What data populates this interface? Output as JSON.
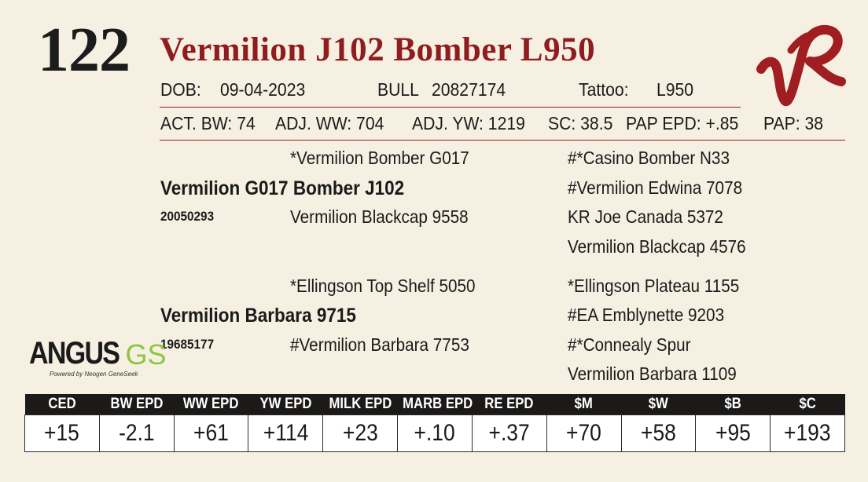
{
  "lot_number": "122",
  "animal_name": "Vermilion J102 Bomber L950",
  "dob_label": "DOB:",
  "dob": "09-04-2023",
  "sex": "BULL",
  "registration": "20827174",
  "tattoo_label": "Tattoo:",
  "tattoo": "L950",
  "performance": [
    "ACT. BW: 74",
    "ADJ. WW: 704",
    "ADJ. YW: 1219",
    "SC: 38.5",
    "PAP EPD: +.85",
    "PAP: 38"
  ],
  "pedigree": {
    "sire": "Vermilion G017 Bomber J102",
    "sire_reg": "20050293",
    "sire_sire": "*Vermilion Bomber G017",
    "sire_dam": "Vermilion Blackcap 9558",
    "sire_sire_sire": "#*Casino Bomber N33",
    "sire_sire_dam": "#Vermilion Edwina 7078",
    "sire_dam_sire": "KR Joe Canada 5372",
    "sire_dam_dam": "Vermilion Blackcap 4576",
    "dam": "Vermilion Barbara 9715",
    "dam_reg": "19685177",
    "dam_sire": "*Ellingson Top Shelf 5050",
    "dam_dam": "#Vermilion Barbara 7753",
    "dam_sire_sire": "*Ellingson Plateau 1155",
    "dam_sire_dam": "#EA Emblynette 9203",
    "dam_dam_sire": "#*Connealy Spur",
    "dam_dam_dam": "Vermilion Barbara 1109"
  },
  "logos": {
    "ranch_mark": "VR",
    "angus_word": "ANGUS",
    "angus_gs": "GS",
    "angus_tagline": "Powered by Neogen GeneSeek"
  },
  "epd_headers": [
    "CED",
    "BW EPD",
    "WW EPD",
    "YW EPD",
    "MILK EPD",
    "MARB EPD",
    "RE EPD",
    "$M",
    "$W",
    "$B",
    "$C"
  ],
  "epd_values": [
    "+15",
    "-2.1",
    "+61",
    "+114",
    "+23",
    "+.10",
    "+.37",
    "+70",
    "+58",
    "+95",
    "+193"
  ],
  "colors": {
    "background": "#f6f0e2",
    "accent_red": "#8f1d1f",
    "header_dark": "#1c1a18",
    "gs_green": "#8dc63f"
  }
}
